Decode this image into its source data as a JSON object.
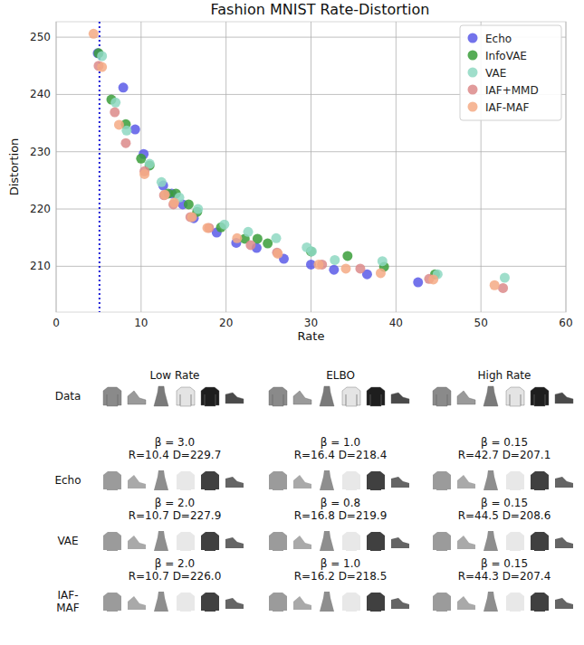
{
  "chart_data": {
    "type": "scatter",
    "title": "Fashion MNIST Rate-Distortion",
    "x_label": "Rate",
    "y_label": "Distortion",
    "xlim": [
      0,
      60
    ],
    "ylim": [
      202,
      252.7
    ],
    "xticks": [
      0,
      10,
      20,
      30,
      40,
      50,
      60
    ],
    "yticks": [
      210,
      220,
      230,
      240,
      250
    ],
    "grid": true,
    "legend": "upper right",
    "reference_lines": [
      {
        "x": 5.1,
        "color": "#1a1ad6",
        "line_style": "dotted"
      }
    ],
    "series": [
      {
        "name": "Echo",
        "color": "#5a5ae8",
        "marker": "circle",
        "x": [
          4.9,
          7.9,
          9.3,
          10.3,
          12.6,
          13.6,
          14.9,
          16.2,
          18.9,
          21.2,
          23.6,
          26.8,
          30.0,
          32.7,
          36.6,
          42.6
        ],
        "values": [
          247.2,
          241.2,
          233.9,
          229.6,
          224.1,
          222.7,
          220.8,
          218.4,
          215.9,
          214.1,
          213.2,
          211.3,
          210.3,
          209.4,
          208.6,
          207.2
        ]
      },
      {
        "name": "InfoVAE",
        "color": "#3a9e3a",
        "marker": "circle",
        "x": [
          5.0,
          6.5,
          8.2,
          10.0,
          11.0,
          13.2,
          14.1,
          15.6,
          16.6,
          19.4,
          22.2,
          23.7,
          24.9,
          30.0,
          34.3,
          38.6,
          44.6
        ],
        "values": [
          247.2,
          239.1,
          234.8,
          228.8,
          227.6,
          222.7,
          222.7,
          220.8,
          219.5,
          216.8,
          214.8,
          214.8,
          214.0,
          212.6,
          211.8,
          209.9,
          208.6
        ]
      },
      {
        "name": "VAE",
        "color": "#8ed8c2",
        "marker": "circle",
        "x": [
          5.4,
          7.0,
          8.3,
          11.0,
          12.4,
          14.5,
          16.7,
          19.8,
          22.6,
          25.9,
          29.5,
          30.1,
          32.8,
          38.4,
          44.9,
          52.8
        ],
        "values": [
          246.7,
          238.6,
          233.7,
          227.9,
          224.7,
          222.0,
          220.0,
          217.3,
          216.0,
          214.9,
          213.3,
          212.6,
          211.1,
          210.9,
          208.6,
          208.0
        ]
      },
      {
        "name": "IAF+MMD",
        "color": "#dc8a8a",
        "marker": "circle",
        "x": [
          5.0,
          6.9,
          8.2,
          10.4,
          12.7,
          13.8,
          15.8,
          18.0,
          22.9,
          26.0,
          31.3,
          35.8,
          43.9,
          52.6
        ],
        "values": [
          245.0,
          236.9,
          231.5,
          226.6,
          222.4,
          220.8,
          218.6,
          216.7,
          213.7,
          212.4,
          210.3,
          209.6,
          207.8,
          206.2
        ]
      },
      {
        "name": "IAF-MAF",
        "color": "#f5aa85",
        "marker": "circle",
        "x": [
          4.4,
          5.4,
          7.4,
          10.4,
          12.8,
          13.9,
          16.0,
          17.8,
          21.3,
          26.1,
          30.9,
          34.1,
          38.2,
          44.4,
          51.6
        ],
        "values": [
          250.6,
          244.8,
          234.7,
          226.1,
          222.5,
          221.1,
          218.6,
          216.7,
          214.9,
          212.2,
          210.3,
          209.6,
          208.8,
          207.7,
          206.7
        ]
      }
    ]
  },
  "sample_grid": {
    "columns": [
      "Low Rate",
      "ELBO",
      "High Rate"
    ],
    "rows": [
      {
        "label": "Data"
      },
      {
        "label": "Echo",
        "cells": [
          {
            "beta": "β = 3.0",
            "rd": "R=10.4 D=229.7"
          },
          {
            "beta": "β = 1.0",
            "rd": "R=16.4 D=218.4"
          },
          {
            "beta": "β = 0.15",
            "rd": "R=42.7 D=207.1"
          }
        ]
      },
      {
        "label": "VAE",
        "cells": [
          {
            "beta": "β = 2.0",
            "rd": "R=10.7 D=227.9"
          },
          {
            "beta": "β = 0.8",
            "rd": "R=16.8 D=219.9"
          },
          {
            "beta": "β = 0.15",
            "rd": "R=44.5 D=208.6"
          }
        ]
      },
      {
        "label": "IAF-MAF",
        "cells": [
          {
            "beta": "β = 2.0",
            "rd": "R=10.7 D=226.0"
          },
          {
            "beta": "β = 1.0",
            "rd": "R=16.2 D=218.5"
          },
          {
            "beta": "β = 0.15",
            "rd": "R=44.3 D=207.4"
          }
        ]
      }
    ]
  }
}
